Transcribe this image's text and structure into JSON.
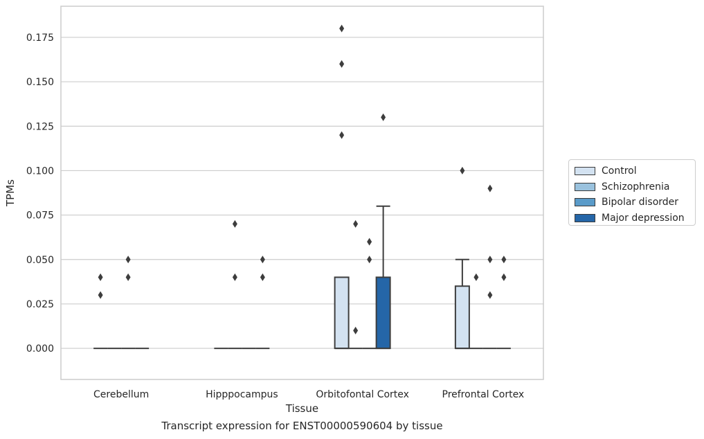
{
  "caption": "Transcript expression for ENST00000590604 by tissue",
  "chart_data": {
    "type": "box",
    "xlabel": "Tissue",
    "ylabel": "TPMs",
    "ylim": [
      -0.0175,
      0.1925
    ],
    "yticks": [
      0.0,
      0.025,
      0.05,
      0.075,
      0.1,
      0.125,
      0.15,
      0.175
    ],
    "ytick_labels": [
      "0.000",
      "0.025",
      "0.050",
      "0.075",
      "0.100",
      "0.125",
      "0.150",
      "0.175"
    ],
    "grid": "horizontal",
    "legend_placement": "right",
    "categories": [
      "Cerebellum",
      "Hipppocampus",
      "Orbitofontal Cortex",
      "Prefrontal Cortex"
    ],
    "series": [
      {
        "name": "Control",
        "color": "#d3e2f1",
        "boxes": [
          {
            "q1": 0,
            "median": 0,
            "q3": 0,
            "whisker_low": 0,
            "whisker_high": 0,
            "outliers": [
              0.03,
              0.04
            ]
          },
          {
            "q1": 0,
            "median": 0,
            "q3": 0,
            "whisker_low": 0,
            "whisker_high": 0,
            "outliers": []
          },
          {
            "q1": 0,
            "median": 0,
            "q3": 0.04,
            "whisker_low": 0,
            "whisker_high": 0.04,
            "outliers": [
              0.12,
              0.16,
              0.18
            ]
          },
          {
            "q1": 0,
            "median": 0,
            "q3": 0.035,
            "whisker_low": 0,
            "whisker_high": 0.05,
            "outliers": [
              0.1
            ]
          }
        ]
      },
      {
        "name": "Schizophrenia",
        "color": "#9ac2de",
        "boxes": [
          {
            "q1": 0,
            "median": 0,
            "q3": 0,
            "whisker_low": 0,
            "whisker_high": 0,
            "outliers": []
          },
          {
            "q1": 0,
            "median": 0,
            "q3": 0,
            "whisker_low": 0,
            "whisker_high": 0,
            "outliers": [
              0.04,
              0.07
            ]
          },
          {
            "q1": 0,
            "median": 0,
            "q3": 0,
            "whisker_low": 0,
            "whisker_high": 0,
            "outliers": [
              0.01,
              0.07
            ]
          },
          {
            "q1": 0,
            "median": 0,
            "q3": 0,
            "whisker_low": 0,
            "whisker_high": 0,
            "outliers": [
              0.04
            ]
          }
        ]
      },
      {
        "name": "Bipolar disorder",
        "color": "#5a9bc9",
        "boxes": [
          {
            "q1": 0,
            "median": 0,
            "q3": 0,
            "whisker_low": 0,
            "whisker_high": 0,
            "outliers": [
              0.04,
              0.05
            ]
          },
          {
            "q1": 0,
            "median": 0,
            "q3": 0,
            "whisker_low": 0,
            "whisker_high": 0,
            "outliers": []
          },
          {
            "q1": 0,
            "median": 0,
            "q3": 0,
            "whisker_low": 0,
            "whisker_high": 0,
            "outliers": [
              0.05,
              0.06
            ]
          },
          {
            "q1": 0,
            "median": 0,
            "q3": 0,
            "whisker_low": 0,
            "whisker_high": 0,
            "outliers": [
              0.03,
              0.05,
              0.09
            ]
          }
        ]
      },
      {
        "name": "Major depression",
        "color": "#2566a8",
        "boxes": [
          {
            "q1": 0,
            "median": 0,
            "q3": 0,
            "whisker_low": 0,
            "whisker_high": 0,
            "outliers": []
          },
          {
            "q1": 0,
            "median": 0,
            "q3": 0,
            "whisker_low": 0,
            "whisker_high": 0,
            "outliers": [
              0.04,
              0.05
            ]
          },
          {
            "q1": 0,
            "median": 0,
            "q3": 0.04,
            "whisker_low": 0,
            "whisker_high": 0.08,
            "outliers": [
              0.13
            ]
          },
          {
            "q1": 0,
            "median": 0,
            "q3": 0,
            "whisker_low": 0,
            "whisker_high": 0,
            "outliers": [
              0.04,
              0.05
            ]
          }
        ]
      }
    ]
  }
}
